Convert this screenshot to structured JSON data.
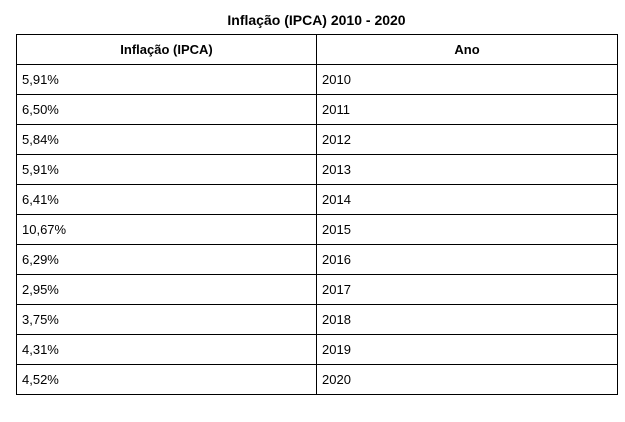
{
  "title": "Inflação (IPCA) 2010 - 2020",
  "table": {
    "headers": [
      "Inflação (IPCA)",
      "Ano"
    ],
    "rows": [
      [
        "5,91%",
        "2010"
      ],
      [
        "6,50%",
        "2011"
      ],
      [
        "5,84%",
        "2012"
      ],
      [
        "5,91%",
        "2013"
      ],
      [
        "6,41%",
        "2014"
      ],
      [
        "10,67%",
        "2015"
      ],
      [
        "6,29%",
        "2016"
      ],
      [
        "2,95%",
        "2017"
      ],
      [
        "3,75%",
        "2018"
      ],
      [
        "4,31%",
        "2019"
      ],
      [
        "4,52%",
        "2020"
      ]
    ]
  },
  "chart_data": {
    "type": "table",
    "title": "Inflação (IPCA) 2010 - 2020",
    "columns": [
      "Inflação (IPCA)",
      "Ano"
    ],
    "x": [
      2010,
      2011,
      2012,
      2013,
      2014,
      2015,
      2016,
      2017,
      2018,
      2019,
      2020
    ],
    "series": [
      {
        "name": "Inflação (IPCA)",
        "values": [
          5.91,
          6.5,
          5.84,
          5.91,
          6.41,
          10.67,
          6.29,
          2.95,
          3.75,
          4.31,
          4.52
        ]
      }
    ]
  }
}
